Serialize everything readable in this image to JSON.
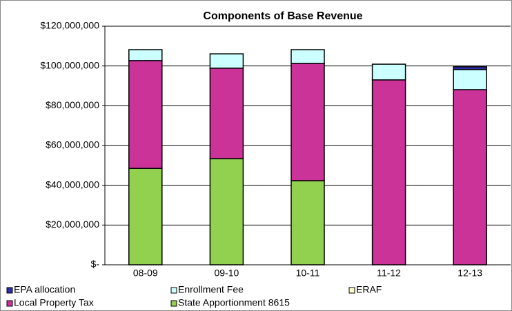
{
  "chart_data": {
    "type": "stacked_bar",
    "title": "Components of Base Revenue",
    "categories": [
      "08-09",
      "09-10",
      "10-11",
      "11-12",
      "12-13"
    ],
    "series": [
      {
        "name": "EPA allocation",
        "color": "#2e2eaa",
        "values": [
          0,
          0,
          0,
          0,
          1400000
        ]
      },
      {
        "name": "Enrollment Fee",
        "color": "#ccffff",
        "values": [
          5500000,
          7200000,
          6900000,
          7900000,
          10100000
        ]
      },
      {
        "name": "ERAF",
        "color": "#ffffcc",
        "values": [
          0,
          0,
          0,
          0,
          0
        ]
      },
      {
        "name": "Local Property Tax",
        "color": "#cc3399",
        "values": [
          54200000,
          45500000,
          59000000,
          93000000,
          88100000
        ]
      },
      {
        "name": "State Apportionment 8615",
        "color": "#92d050",
        "values": [
          48500000,
          53400000,
          42300000,
          0,
          0
        ]
      }
    ],
    "ylim": [
      0,
      120000000
    ],
    "yticks": [
      {
        "value": 0,
        "label": "$-"
      },
      {
        "value": 20000000,
        "label": "$20,000,000"
      },
      {
        "value": 40000000,
        "label": "$40,000,000"
      },
      {
        "value": 60000000,
        "label": "$60,000,000"
      },
      {
        "value": 80000000,
        "label": "$80,000,000"
      },
      {
        "value": 100000000,
        "label": "$100,000,000"
      },
      {
        "value": 120000000,
        "label": "$120,000,000"
      }
    ],
    "grid": true
  }
}
